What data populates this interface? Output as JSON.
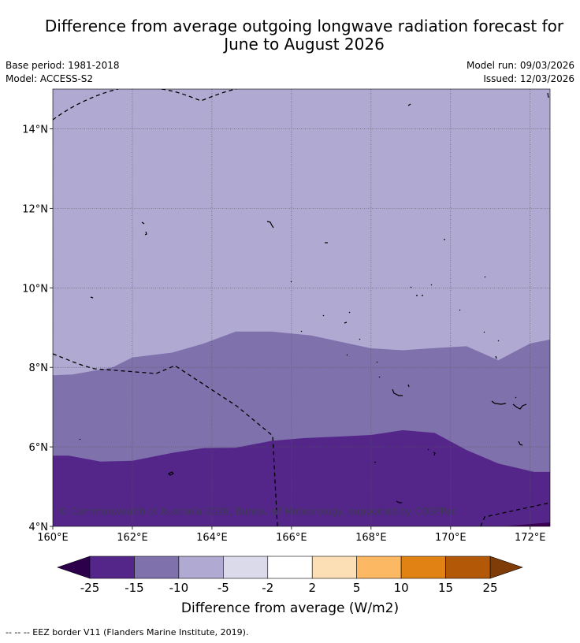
{
  "title": {
    "line1": "Difference from average outgoing longwave radiation forecast for",
    "line2": "June to August 2026"
  },
  "meta": {
    "base_period": "Base period: 1981-2018",
    "model": "Model: ACCESS-S2",
    "model_run": "Model run: 09/03/2026",
    "issued": "Issued: 12/03/2026"
  },
  "map": {
    "lon_range": [
      160,
      172.5
    ],
    "lat_range": [
      4,
      15
    ],
    "lon_ticks": [
      "160°E",
      "162°E",
      "164°E",
      "166°E",
      "168°E",
      "170°E",
      "172°E"
    ],
    "lat_ticks": [
      "4°N",
      "6°N",
      "8°N",
      "10°N",
      "12°N",
      "14°N"
    ],
    "copyright": "© Commonwealth of Australia 2026, Bureau of Meteorology, supported by COSPPac",
    "regions": {
      "upper_color": "#b0aad2",
      "middle_color": "#7f71ac",
      "lower_color": "#54268a",
      "corner_color": "#3b0052",
      "boundary_upper_lat": [
        [
          160,
          7.8
        ],
        [
          160.5,
          7.82
        ],
        [
          161.5,
          8
        ],
        [
          162,
          8.25
        ],
        [
          163,
          8.37
        ],
        [
          163.8,
          8.6
        ],
        [
          164.6,
          8.9
        ],
        [
          165.5,
          8.9
        ],
        [
          166.5,
          8.8
        ],
        [
          167.2,
          8.65
        ],
        [
          168,
          8.48
        ],
        [
          168.8,
          8.43
        ],
        [
          169.5,
          8.48
        ],
        [
          170.4,
          8.53
        ],
        [
          171.2,
          8.18
        ],
        [
          172,
          8.6
        ],
        [
          172.5,
          8.7
        ]
      ],
      "boundary_lower_lat": [
        [
          160,
          5.78
        ],
        [
          160.4,
          5.78
        ],
        [
          161.2,
          5.63
        ],
        [
          162,
          5.65
        ],
        [
          163,
          5.85
        ],
        [
          163.8,
          5.97
        ],
        [
          164.6,
          5.98
        ],
        [
          165.5,
          6.15
        ],
        [
          166.3,
          6.22
        ],
        [
          167.2,
          6.26
        ],
        [
          168,
          6.3
        ],
        [
          168.8,
          6.42
        ],
        [
          169.6,
          6.35
        ],
        [
          170.4,
          5.92
        ],
        [
          171.2,
          5.58
        ],
        [
          172.1,
          5.37
        ],
        [
          172.5,
          5.37
        ]
      ]
    }
  },
  "colorbar": {
    "ticks": [
      "-25",
      "-15",
      "-10",
      "-5",
      "-2",
      "2",
      "5",
      "10",
      "15",
      "25"
    ],
    "colors": [
      "#54268a",
      "#7f71ac",
      "#b0aad2",
      "#dadaeb",
      "#ffffff",
      "#fddfb5",
      "#fdb863",
      "#e08214",
      "#b35806"
    ],
    "under_color": "#2d004b",
    "over_color": "#7f3b08",
    "label": "Difference from average (W/m2)"
  },
  "footer": "--  --  -- EEZ border V11 (Flanders Marine Institute, 2019)."
}
